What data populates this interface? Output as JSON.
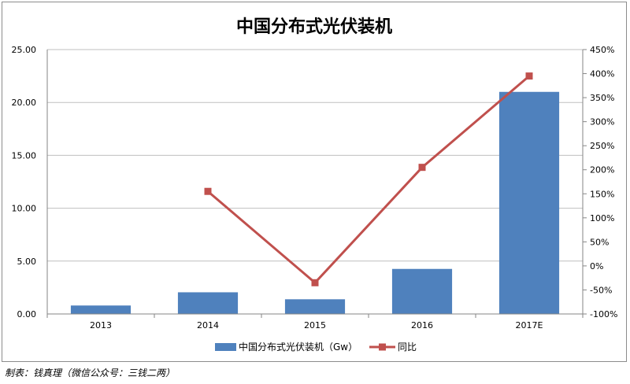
{
  "chart_data": {
    "type": "bar",
    "title": "中国分布式光伏装机",
    "categories": [
      "2013",
      "2014",
      "2015",
      "2016",
      "2017E"
    ],
    "series": [
      {
        "name": "中国分布式光伏装机（Gw）",
        "type": "bar",
        "axis": "left",
        "values": [
          0.8,
          2.05,
          1.39,
          4.26,
          21.0
        ]
      },
      {
        "name": "同比",
        "type": "line",
        "axis": "right",
        "values": [
          null,
          1.55,
          -0.35,
          2.05,
          3.95
        ]
      }
    ],
    "y_left": {
      "ylim": [
        0,
        25
      ],
      "ticks": [
        "0.00",
        "5.00",
        "10.00",
        "15.00",
        "20.00",
        "25.00"
      ]
    },
    "y_right": {
      "ylim": [
        -1.0,
        4.5
      ],
      "ticks": [
        "-100%",
        "-50%",
        "0%",
        "50%",
        "100%",
        "150%",
        "200%",
        "250%",
        "300%",
        "350%",
        "400%",
        "450%"
      ]
    },
    "grid": true,
    "legend_position": "bottom",
    "colors": {
      "bar": "#4f81bd",
      "line": "#c0504d"
    }
  },
  "source_note": "制表：钱真理（微信公众号：三钱二两）"
}
